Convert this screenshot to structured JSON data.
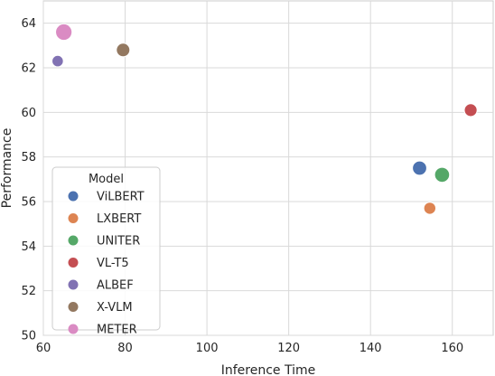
{
  "chart_data": {
    "type": "scatter",
    "title": "",
    "xlabel": "Inference Time",
    "ylabel": "Performance",
    "xlim": [
      60,
      170
    ],
    "ylim": [
      50,
      65
    ],
    "xticks": [
      60,
      80,
      100,
      120,
      140,
      160
    ],
    "yticks": [
      50,
      52,
      54,
      56,
      58,
      60,
      62,
      64
    ],
    "grid": true,
    "legend": {
      "title": "Model",
      "placement": "lower-left"
    },
    "series": [
      {
        "name": "ViLBERT",
        "color": "#4c72b0",
        "x": 152,
        "y": 57.5,
        "size": 1.0
      },
      {
        "name": "LXBERT",
        "color": "#dd8452",
        "x": 154.5,
        "y": 55.7,
        "size": 0.85
      },
      {
        "name": "UNITER",
        "color": "#55a868",
        "x": 157.5,
        "y": 57.2,
        "size": 1.05
      },
      {
        "name": "VL-T5",
        "color": "#c44e52",
        "x": 164.5,
        "y": 60.1,
        "size": 0.9
      },
      {
        "name": "ALBEF",
        "color": "#8172b3",
        "x": 63.5,
        "y": 62.3,
        "size": 0.8
      },
      {
        "name": "X-VLM",
        "color": "#937860",
        "x": 79.5,
        "y": 62.8,
        "size": 0.95
      },
      {
        "name": "METER",
        "color": "#da8bc3",
        "x": 65,
        "y": 63.6,
        "size": 1.15
      }
    ]
  }
}
